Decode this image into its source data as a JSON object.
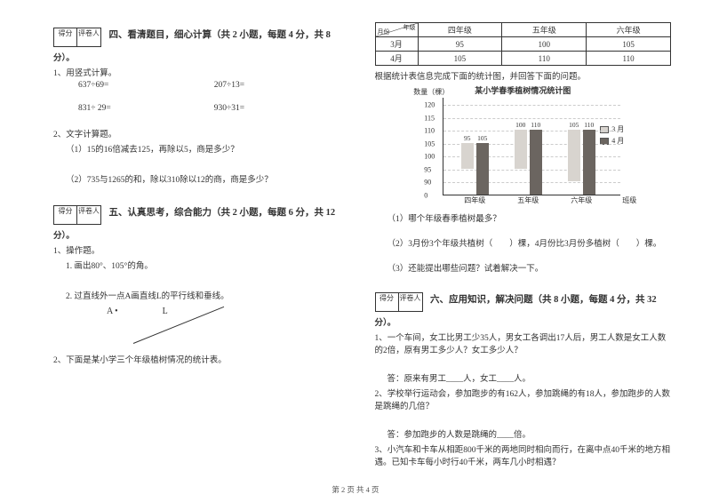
{
  "left": {
    "sec4_title": "四、看清题目，细心计算（共 2 小题，每题 4 分，共 8",
    "fen": "分）。",
    "q1": "1、用竖式计算。",
    "c1a": "637÷69=",
    "c1b": "207÷13=",
    "c2a": "831÷ 29=",
    "c2b": "930÷31=",
    "q2": "2、文字计算题。",
    "q2_1": "（1）15的16倍减去125，再除以5，商是多少？",
    "q2_2": "（2）735与1265的和，除以310除以12的商，商是多少？",
    "sec5_title": "五、认真思考，综合能力（共 2 小题，每题 6 分，共 12",
    "q5_1": "1、操作题。",
    "q5_1_1": "1. 画出80°、105°的角。",
    "q5_1_2": "2. 过直线外一点A画直线L的平行线和垂线。",
    "ptA": "A  •",
    "ptL": "L",
    "q5_2": "2、下面是某小学三个年级植树情况的统计表。"
  },
  "right": {
    "tbl": {
      "head_class": "年级",
      "head_month": "月份",
      "cols": [
        "四年级",
        "五年级",
        "六年级"
      ],
      "rows": [
        {
          "m": "3月",
          "v": [
            "95",
            "100",
            "105"
          ]
        },
        {
          "m": "4月",
          "v": [
            "105",
            "110",
            "110"
          ]
        }
      ]
    },
    "chart_intro": "根据统计表信息完成下面的统计图，并回答下面的问题。",
    "chart_title": "某小学春季植树情况统计图",
    "chart": {
      "ylabel": "数量（棵）",
      "ymax": 120,
      "yticks": [
        0,
        90,
        95,
        100,
        105,
        110,
        115,
        120
      ],
      "groups": [
        "四年级",
        "五年级",
        "六年级"
      ],
      "march": [
        95,
        100,
        105
      ],
      "april": [
        105,
        110,
        110
      ],
      "march_color": "#d8d4cf",
      "april_color": "#6b6560",
      "legend_mar": "3 月",
      "legend_apr": "4 月",
      "xaxis": "班级"
    },
    "cq1": "（1）哪个年级春季植树最多？",
    "cq2a": "（2）3月份3个年级共植树（　　）棵，4月份比3月份多植树（　　）棵。",
    "cq3": "（3）还能提出哪些问题？试着解决一下。",
    "sec6_title": "六、应用知识，解决问题（共 8 小题，每题 4 分，共 32",
    "fen": "分）。",
    "a1": "1、一个车间，女工比男工少35人，男女工各调出17人后，男工人数是女工人数的2倍，原有男工多少人？女工多少人？",
    "a1_ans": "答：原来有男工____人，女工____人。",
    "a2": "2、学校举行运动会，参加跑步的有162人，参加跳绳的有18人，参加跑步的人数是跳绳的几倍？",
    "a2_ans": "答：参加跑步的人数是跳绳的____倍。",
    "a3": "3、小汽车和卡车从相距800千米的两地同时相向而行，在离中点40千米的地方相遇。已知卡车每小时行40千米，两车几小时相遇？"
  },
  "score": {
    "l": "得分",
    "r": "评卷人"
  },
  "footer": "第 2 页 共 4 页"
}
